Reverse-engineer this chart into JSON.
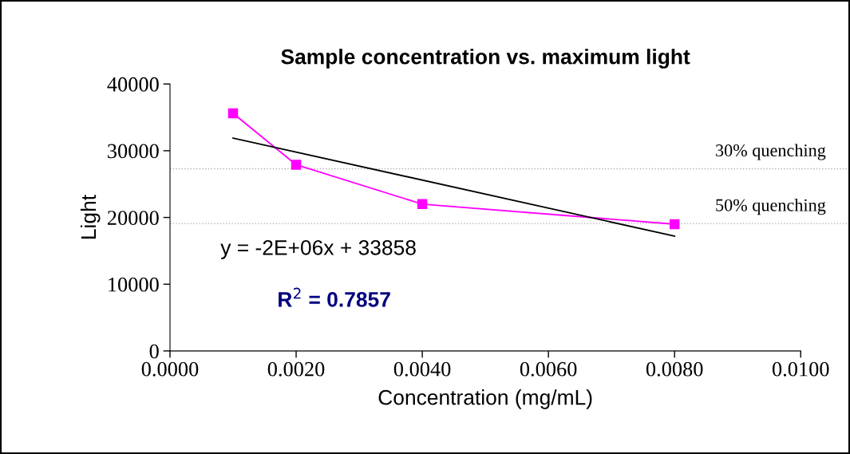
{
  "chart_data": {
    "type": "line",
    "title": "Sample concentration vs. maximum light",
    "xlabel": "Concentration (mg/mL)",
    "ylabel": "Light",
    "x": [
      0.001,
      0.002,
      0.004,
      0.008
    ],
    "series": [
      {
        "color": "#ff00ff",
        "values": [
          35600,
          27900,
          22000,
          19000
        ],
        "marker": "square"
      },
      {
        "color": "#000000",
        "x": [
          0.001,
          0.008
        ],
        "values": [
          31900,
          17200
        ],
        "marker": "none"
      }
    ],
    "xlim": [
      0,
      0.01
    ],
    "xticks": [
      {
        "value": 0,
        "label": "0.0000"
      },
      {
        "value": 0.002,
        "label": "0.0020"
      },
      {
        "value": 0.004,
        "label": "0.0040"
      },
      {
        "value": 0.006,
        "label": "0.0060"
      },
      {
        "value": 0.008,
        "label": "0.0080"
      },
      {
        "value": 0.01,
        "label": "0.0100"
      }
    ],
    "ylim": [
      0,
      40000
    ],
    "yticks": [
      0,
      10000,
      20000,
      30000,
      40000
    ],
    "ref_lines": [
      {
        "axis": "y",
        "value": 27300,
        "label": "30% quenching",
        "color": "#b0b0b0",
        "line_style": "dotted"
      },
      {
        "axis": "y",
        "value": 19100,
        "label": "50% quenching",
        "color": "#b0b0b0",
        "line_style": "dotted"
      }
    ],
    "annotations": [
      "y = -2E+06x + 33858",
      "R$^{2}$ = 0.7857"
    ],
    "grid": false,
    "legend": false
  }
}
